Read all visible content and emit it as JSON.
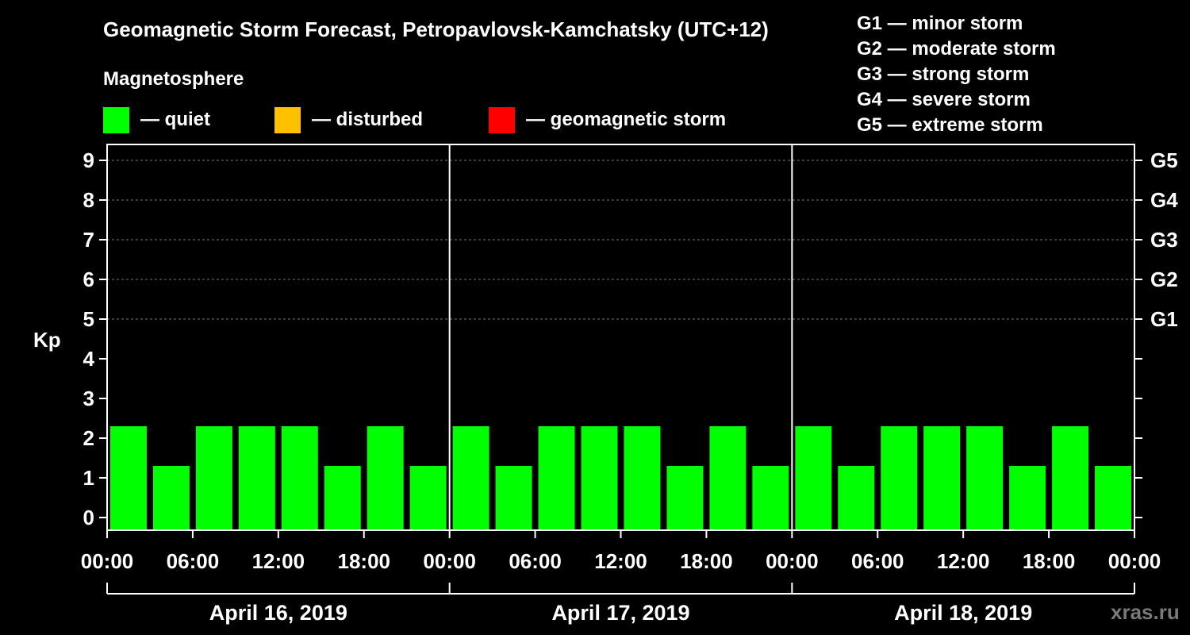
{
  "title": "Geomagnetic Storm Forecast, Petropavlovsk-Kamchatsky (UTC+12)",
  "magnetosphere": {
    "title": "Magnetosphere",
    "items": [
      {
        "label": "— quiet",
        "color": "#00ff00"
      },
      {
        "label": "— disturbed",
        "color": "#ffc000"
      },
      {
        "label": "— geomagnetic storm",
        "color": "#ff0000"
      }
    ]
  },
  "g_scale_legend": [
    "G1 — minor storm",
    "G2 — moderate storm",
    "G3 — strong storm",
    "G4 — severe storm",
    "G5 — extreme storm"
  ],
  "watermark": "xras.ru",
  "chart_data": {
    "type": "bar",
    "ylabel": "Kp",
    "ylim": [
      0,
      9
    ],
    "y_ticks": [
      "0",
      "1",
      "2",
      "3",
      "4",
      "5",
      "6",
      "7",
      "8",
      "9"
    ],
    "right_axis_labels": [
      {
        "kp": 5,
        "label": "G1"
      },
      {
        "kp": 6,
        "label": "G2"
      },
      {
        "kp": 7,
        "label": "G3"
      },
      {
        "kp": 8,
        "label": "G4"
      },
      {
        "kp": 9,
        "label": "G5"
      }
    ],
    "x_tick_labels": [
      "00:00",
      "06:00",
      "12:00",
      "18:00",
      "00:00",
      "06:00",
      "12:00",
      "18:00",
      "00:00",
      "06:00",
      "12:00",
      "18:00",
      "00:00"
    ],
    "days": [
      "April 16, 2019",
      "April 17, 2019",
      "April 18, 2019"
    ],
    "interval_hours": 3,
    "values": [
      2,
      1,
      2,
      2,
      2,
      1,
      2,
      1,
      2,
      1,
      2,
      2,
      2,
      1,
      2,
      1,
      2,
      1,
      2,
      2,
      2,
      1,
      2,
      1
    ],
    "bar_color": "#00ff00",
    "grid": "dashed at Kp 5–9"
  }
}
